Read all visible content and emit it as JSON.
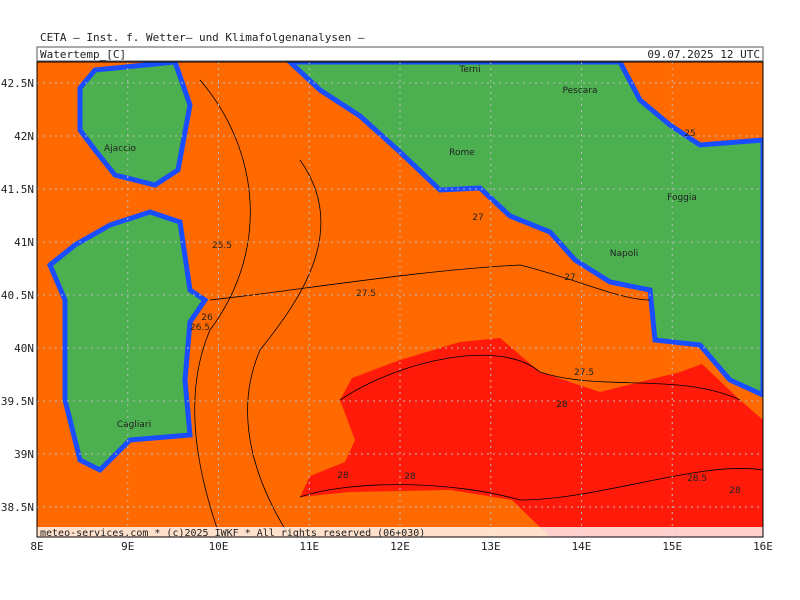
{
  "header": {
    "institute": "CETA — Inst. f. Wetter— und Klimafolgenanalysen —",
    "field": "Watertemp_[C]",
    "valid_time": "09.07.2025 12 UTC"
  },
  "footer": "meteo-services.com * (c)2025 IWKF * All rights reserved (06+030)",
  "axes": {
    "lon_labels": [
      "8E",
      "9E",
      "10E",
      "11E",
      "12E",
      "13E",
      "14E",
      "15E",
      "16E"
    ],
    "lat_labels": [
      "42.5N",
      "42N",
      "41.5N",
      "41N",
      "40.5N",
      "40N",
      "39.5N",
      "39N",
      "38.5N"
    ]
  },
  "cities": [
    "Terni",
    "Pescara",
    "Ajaccio",
    "Rome",
    "Foggia",
    "Napoli",
    "Cagliari"
  ],
  "contour_labels": [
    "25.5",
    "26",
    "26.5",
    "27.5",
    "27",
    "27",
    "25",
    "27.5",
    "28",
    "28",
    "28",
    "28.5",
    "28"
  ]
}
